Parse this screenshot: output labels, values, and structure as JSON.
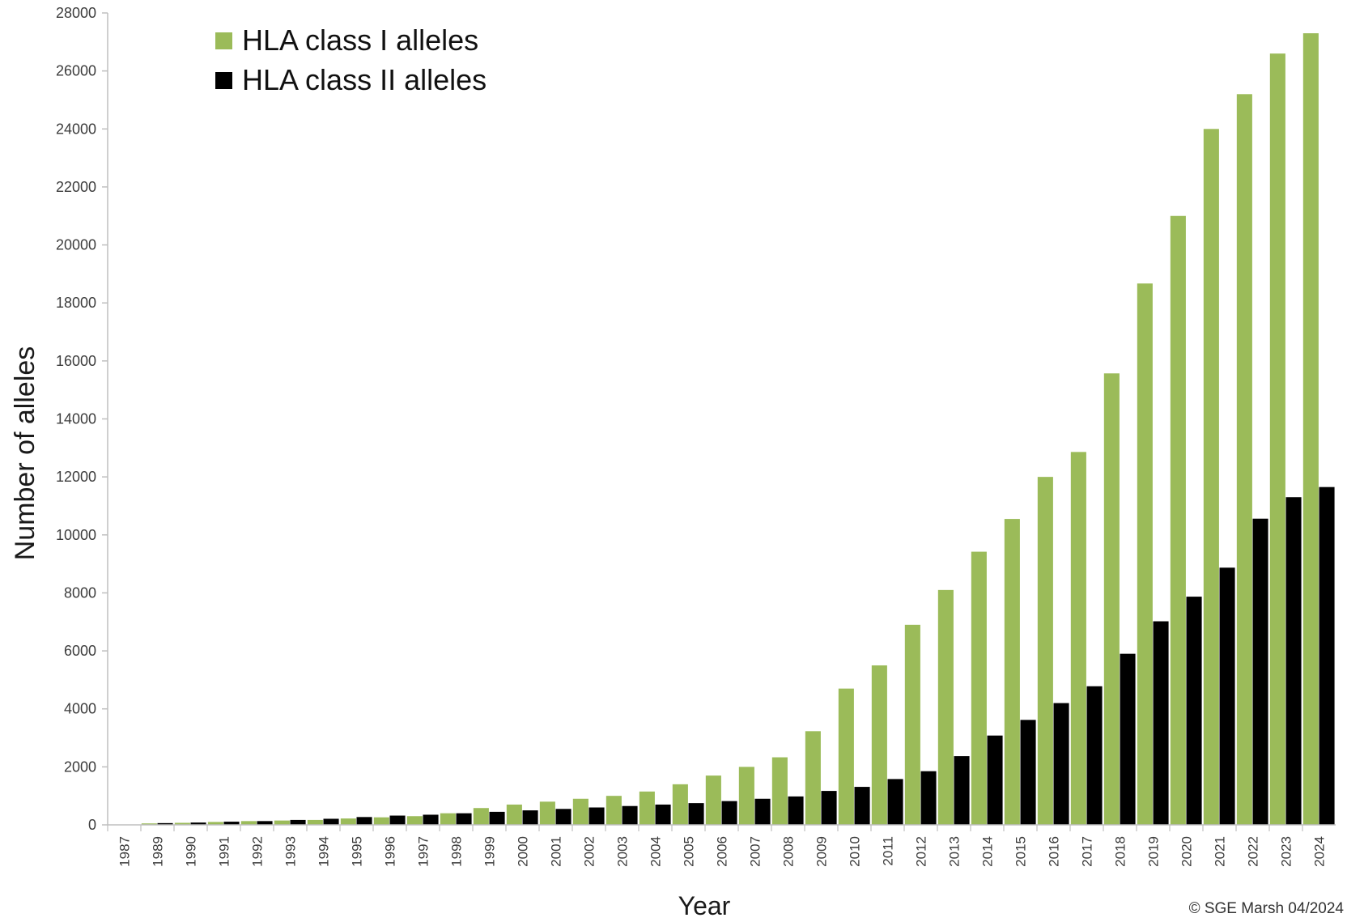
{
  "chart_data": {
    "type": "bar",
    "title": "",
    "xlabel": "Year",
    "ylabel": "Number of alleles",
    "ylim": [
      0,
      28000
    ],
    "yticks": [
      "0",
      "2000",
      "4000",
      "6000",
      "8000",
      "10000",
      "12000",
      "14000",
      "16000",
      "18000",
      "20000",
      "22000",
      "24000",
      "26000",
      "28000"
    ],
    "grid": false,
    "legend_position": "top-left",
    "categories": [
      "1987",
      "1989",
      "1990",
      "1991",
      "1992",
      "1993",
      "1994",
      "1995",
      "1996",
      "1997",
      "1998",
      "1999",
      "2000",
      "2001",
      "2002",
      "2003",
      "2004",
      "2005",
      "2006",
      "2007",
      "2008",
      "2009",
      "2010",
      "2011",
      "2012",
      "2013",
      "2014",
      "2015",
      "2016",
      "2017",
      "2018",
      "2019",
      "2020",
      "2021",
      "2022",
      "2023",
      "2024"
    ],
    "series": [
      {
        "name": "HLA class I alleles",
        "color": "#9bbb59",
        "values": [
          10,
          50,
          70,
          100,
          130,
          150,
          170,
          220,
          260,
          300,
          400,
          580,
          700,
          800,
          900,
          1000,
          1150,
          1400,
          1700,
          2000,
          2330,
          3230,
          4700,
          5500,
          6900,
          8100,
          9420,
          10550,
          12000,
          12860,
          15570,
          18670,
          21000,
          24000,
          25200,
          26600,
          27300
        ]
      },
      {
        "name": "HLA class II alleles",
        "color": "#000000",
        "values": [
          5,
          60,
          80,
          110,
          130,
          170,
          210,
          270,
          320,
          350,
          400,
          450,
          500,
          550,
          600,
          650,
          700,
          750,
          820,
          900,
          980,
          1170,
          1310,
          1580,
          1850,
          2370,
          3080,
          3620,
          4200,
          4780,
          5900,
          7020,
          7870,
          8870,
          10560,
          11300,
          11650
        ]
      }
    ],
    "credit": "© SGE Marsh 04/2024"
  }
}
